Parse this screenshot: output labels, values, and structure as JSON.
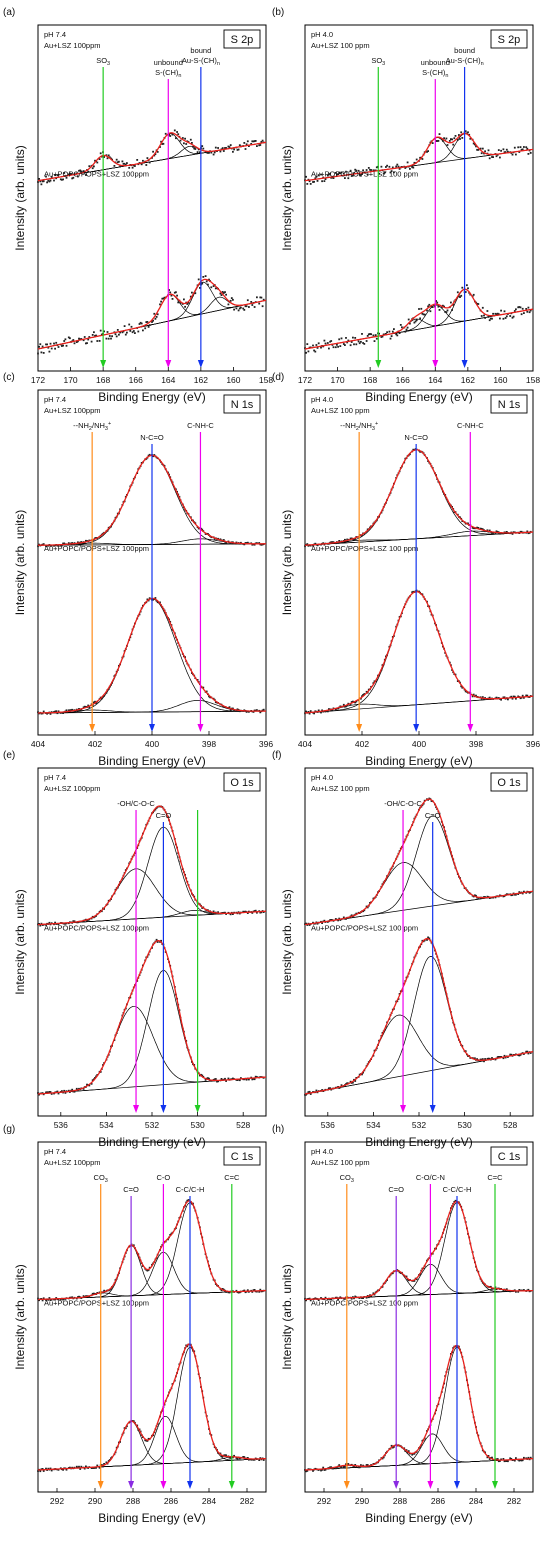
{
  "figure": {
    "panels": [
      {
        "id": "a",
        "tag": "(a)",
        "badge": "S 2p",
        "cond": "pH 7.4",
        "sample_top": "Au+LSZ 100ppm",
        "sample_bottom": "Au+POPC/POPS+LSZ 100ppm"
      },
      {
        "id": "b",
        "tag": "(b)",
        "badge": "S 2p",
        "cond": "pH 4.0",
        "sample_top": "Au+LSZ 100 ppm",
        "sample_bottom": "Au+POPC/POPS+LSZ 100 ppm"
      },
      {
        "id": "c",
        "tag": "(c)",
        "badge": "N 1s",
        "cond": "pH 7.4",
        "sample_top": "Au+LSZ 100ppm",
        "sample_bottom": "Au+POPC/POPS+LSZ 100ppm"
      },
      {
        "id": "d",
        "tag": "(d)",
        "badge": "N 1s",
        "cond": "pH 4.0",
        "sample_top": "Au+LSZ 100 ppm",
        "sample_bottom": "Au+POPC/POPS+LSZ 100 ppm"
      },
      {
        "id": "e",
        "tag": "(e)",
        "badge": "O 1s",
        "cond": "pH 7.4",
        "sample_top": "Au+LSZ 100ppm",
        "sample_bottom": "Au+POPC/POPS+LSZ 100ppm"
      },
      {
        "id": "f",
        "tag": "(f)",
        "badge": "O 1s",
        "cond": "pH 4.0",
        "sample_top": "Au+LSZ 100 ppm",
        "sample_bottom": "Au+POPC/POPS+LSZ 100 ppm"
      },
      {
        "id": "g",
        "tag": "(g)",
        "badge": "C 1s",
        "cond": "pH 7.4",
        "sample_top": "Au+LSZ 100ppm",
        "sample_bottom": "Au+POPC/POPS+LSZ 100ppm"
      },
      {
        "id": "h",
        "tag": "(h)",
        "badge": "C 1s",
        "cond": "pH 4.0",
        "sample_top": "Au+LSZ 100 ppm",
        "sample_bottom": "Au+POPC/POPS+LSZ 100 ppm"
      }
    ]
  },
  "chart_data": [
    {
      "panel": "a",
      "type": "scatter",
      "title": "S 2p",
      "xlabel": "Binding Energy (eV)",
      "ylabel": "Intensity (arb. units)",
      "xlim": [
        172,
        158
      ],
      "xticks": [
        172,
        170,
        168,
        166,
        164,
        162,
        160,
        158
      ],
      "markers": [
        {
          "x": 168.0,
          "label": "SO",
          "sub": "3",
          "label2": "",
          "color": "#22cc22"
        },
        {
          "x": 164.0,
          "label": "unbound",
          "sub": "",
          "label2": "S-(CH)",
          "sub2": "n",
          "color": "#ee00ee"
        },
        {
          "x": 162.0,
          "label": "bound",
          "sub": "",
          "label2": "Au-S-(CH)",
          "sub2": "n",
          "color": "#1133ee"
        }
      ],
      "spectra": [
        {
          "name": "Au+LSZ 100ppm",
          "peaks": [
            {
              "center": 168.0,
              "amp": 0.08,
              "fwhm": 1.2
            },
            {
              "center": 163.9,
              "amp": 0.14,
              "fwhm": 1.4
            },
            {
              "center": 162.7,
              "amp": 0.05,
              "fwhm": 1.2
            }
          ]
        },
        {
          "name": "Au+POPC/POPS+LSZ 100ppm",
          "peaks": [
            {
              "center": 163.9,
              "amp": 0.1,
              "fwhm": 1.4
            },
            {
              "center": 161.9,
              "amp": 0.12,
              "fwhm": 1.4
            },
            {
              "center": 160.9,
              "amp": 0.05,
              "fwhm": 1.2
            }
          ]
        }
      ]
    },
    {
      "panel": "b",
      "type": "scatter",
      "title": "S 2p",
      "xlabel": "Binding Energy (eV)",
      "ylabel": "Intensity (arb. units)",
      "xlim": [
        172,
        158
      ],
      "xticks": [
        172,
        170,
        168,
        166,
        164,
        162,
        160,
        158
      ],
      "markers": [
        {
          "x": 167.5,
          "label": "SO",
          "sub": "3",
          "label2": "",
          "color": "#22cc22"
        },
        {
          "x": 164.0,
          "label": "unbound",
          "sub": "",
          "label2": "S-(CH)",
          "sub2": "n",
          "color": "#ee00ee"
        },
        {
          "x": 162.2,
          "label": "bound",
          "sub": "",
          "label2": "Au-S-(CH)",
          "sub2": "n",
          "color": "#1133ee"
        }
      ],
      "spectra": [
        {
          "name": "Au+LSZ 100 ppm",
          "peaks": [
            {
              "center": 163.9,
              "amp": 0.12,
              "fwhm": 1.4
            },
            {
              "center": 162.2,
              "amp": 0.12,
              "fwhm": 1.4
            }
          ]
        },
        {
          "name": "Au+POPC/POPS+LSZ 100 ppm",
          "peaks": [
            {
              "center": 164.0,
              "amp": 0.12,
              "fwhm": 1.4
            },
            {
              "center": 162.2,
              "amp": 0.18,
              "fwhm": 1.4
            },
            {
              "center": 165.2,
              "amp": 0.06,
              "fwhm": 1.2
            }
          ]
        }
      ]
    },
    {
      "panel": "c",
      "type": "scatter",
      "title": "N 1s",
      "xlabel": "Binding Energy (eV)",
      "ylabel": "Intensity (arb. units)",
      "xlim": [
        404,
        396
      ],
      "xticks": [
        404,
        402,
        400,
        398,
        396
      ],
      "markers": [
        {
          "x": 402.1,
          "label": "--NH",
          "sub": "2",
          "label_mid": "/NH",
          "sub_mid": "3",
          "sup_mid": "+",
          "label2": "",
          "color": "#ff8c1a"
        },
        {
          "x": 400.0,
          "label": "N-C=O",
          "sub": "",
          "label2": "",
          "color": "#1133ee"
        },
        {
          "x": 398.3,
          "label": "C-NH-C",
          "sub": "",
          "label2": "",
          "color": "#ee00ee"
        }
      ],
      "spectra": [
        {
          "name": "Au+LSZ 100ppm",
          "peaks": [
            {
              "center": 400.0,
              "amp": 1.0,
              "fwhm": 1.9
            },
            {
              "center": 398.3,
              "amp": 0.06,
              "fwhm": 1.5
            },
            {
              "center": 402.1,
              "amp": 0.02,
              "fwhm": 1.5
            }
          ]
        },
        {
          "name": "Au+POPC/POPS+LSZ 100ppm",
          "peaks": [
            {
              "center": 400.0,
              "amp": 0.9,
              "fwhm": 2.0
            },
            {
              "center": 398.4,
              "amp": 0.09,
              "fwhm": 1.5
            },
            {
              "center": 402.1,
              "amp": 0.02,
              "fwhm": 1.5
            }
          ]
        }
      ]
    },
    {
      "panel": "d",
      "type": "scatter",
      "title": "N 1s",
      "xlabel": "Binding Energy (eV)",
      "ylabel": "Intensity (arb. units)",
      "xlim": [
        404,
        396
      ],
      "xticks": [
        404,
        402,
        400,
        398,
        396
      ],
      "markers": [
        {
          "x": 402.1,
          "label": "--NH",
          "sub": "2",
          "label_mid": "/NH",
          "sub_mid": "3",
          "sup_mid": "+",
          "label2": "",
          "color": "#ff8c1a"
        },
        {
          "x": 400.1,
          "label": "N-C=O",
          "sub": "",
          "label2": "",
          "color": "#1133ee"
        },
        {
          "x": 398.2,
          "label": "C-NH-C",
          "sub": "",
          "label2": "",
          "color": "#ee00ee"
        }
      ],
      "spectra": [
        {
          "name": "Au+LSZ 100 ppm",
          "peaks": [
            {
              "center": 400.1,
              "amp": 1.0,
              "fwhm": 1.9
            },
            {
              "center": 398.2,
              "amp": 0.05,
              "fwhm": 1.5
            },
            {
              "center": 402.1,
              "amp": 0.02,
              "fwhm": 1.5
            }
          ]
        },
        {
          "name": "Au+POPC/POPS+LSZ 100 ppm",
          "peaks": [
            {
              "center": 400.1,
              "amp": 0.72,
              "fwhm": 1.9
            },
            {
              "center": 402.1,
              "amp": 0.03,
              "fwhm": 1.5
            }
          ]
        }
      ]
    },
    {
      "panel": "e",
      "type": "scatter",
      "title": "O 1s",
      "xlabel": "Binding Energy (eV)",
      "ylabel": "Intensity (arb. units)",
      "xlim": [
        537,
        527
      ],
      "xticks": [
        536,
        534,
        532,
        530,
        528
      ],
      "markers": [
        {
          "x": 532.7,
          "label": "-OH/C-O-C",
          "sub": "",
          "label2": "",
          "color": "#ee00ee"
        },
        {
          "x": 531.5,
          "label": "C=O",
          "sub": "",
          "label2": "",
          "color": "#1133ee"
        },
        {
          "x": 530.0,
          "label": "",
          "sub": "",
          "label2": "",
          "color": "#22cc22"
        }
      ],
      "spectra": [
        {
          "name": "Au+LSZ 100ppm",
          "peaks": [
            {
              "center": 531.5,
              "amp": 0.9,
              "fwhm": 1.6
            },
            {
              "center": 532.7,
              "amp": 0.5,
              "fwhm": 2.0
            },
            {
              "center": 530.2,
              "amp": 0.05,
              "fwhm": 1.3
            }
          ]
        },
        {
          "name": "Au+POPC/POPS+LSZ 100ppm",
          "peaks": [
            {
              "center": 531.5,
              "amp": 0.78,
              "fwhm": 1.6
            },
            {
              "center": 532.8,
              "amp": 0.55,
              "fwhm": 2.0
            }
          ]
        }
      ]
    },
    {
      "panel": "f",
      "type": "scatter",
      "title": "O 1s",
      "xlabel": "Binding Energy (eV)",
      "ylabel": "Intensity (arb. units)",
      "xlim": [
        537,
        527
      ],
      "xticks": [
        536,
        534,
        532,
        530,
        528
      ],
      "markers": [
        {
          "x": 532.7,
          "label": "-OH/C-O-C",
          "sub": "",
          "label2": "",
          "color": "#ee00ee"
        },
        {
          "x": 531.4,
          "label": "C=O",
          "sub": "",
          "label2": "",
          "color": "#1133ee"
        }
      ],
      "spectra": [
        {
          "name": "Au+LSZ 100 ppm",
          "peaks": [
            {
              "center": 531.4,
              "amp": 0.85,
              "fwhm": 1.7
            },
            {
              "center": 532.7,
              "amp": 0.45,
              "fwhm": 2.0
            }
          ]
        },
        {
          "name": "Au+POPC/POPS+LSZ 100 ppm",
          "peaks": [
            {
              "center": 531.5,
              "amp": 0.65,
              "fwhm": 1.7
            },
            {
              "center": 532.9,
              "amp": 0.35,
              "fwhm": 2.0
            }
          ]
        }
      ]
    },
    {
      "panel": "g",
      "type": "scatter",
      "title": "C 1s",
      "xlabel": "Binding Energy (eV)",
      "ylabel": "Intensity (arb. units)",
      "xlim": [
        293,
        281
      ],
      "xticks": [
        292,
        290,
        288,
        286,
        284,
        282
      ],
      "markers": [
        {
          "x": 289.7,
          "label": "CO",
          "sub": "3",
          "label2": "",
          "color": "#ff8c1a"
        },
        {
          "x": 288.1,
          "label": "C=O",
          "sub": "",
          "label2": "",
          "color": "#8a2be2"
        },
        {
          "x": 286.4,
          "label": "C-O",
          "sub": "",
          "label2": "",
          "color": "#ee00ee"
        },
        {
          "x": 285.0,
          "label": "C-C/C-H",
          "sub": "",
          "label2": "",
          "color": "#1133ee"
        },
        {
          "x": 282.8,
          "label": "C=C",
          "sub": "",
          "label2": "",
          "color": "#22cc22"
        }
      ],
      "spectra": [
        {
          "name": "Au+LSZ 100ppm",
          "peaks": [
            {
              "center": 285.0,
              "amp": 0.9,
              "fwhm": 1.5
            },
            {
              "center": 286.4,
              "amp": 0.42,
              "fwhm": 1.3
            },
            {
              "center": 288.1,
              "amp": 0.5,
              "fwhm": 1.2
            },
            {
              "center": 289.6,
              "amp": 0.04,
              "fwhm": 1.2
            }
          ]
        },
        {
          "name": "Au+POPC/POPS+LSZ 100ppm",
          "peaks": [
            {
              "center": 285.0,
              "amp": 0.68,
              "fwhm": 1.5
            },
            {
              "center": 286.3,
              "amp": 0.28,
              "fwhm": 1.3
            },
            {
              "center": 288.1,
              "amp": 0.26,
              "fwhm": 1.3
            },
            {
              "center": 282.8,
              "amp": 0.02,
              "fwhm": 1.2
            }
          ]
        }
      ]
    },
    {
      "panel": "h",
      "type": "scatter",
      "title": "C 1s",
      "xlabel": "Binding Energy (eV)",
      "ylabel": "Intensity (arb. units)",
      "xlim": [
        293,
        281
      ],
      "xticks": [
        292,
        290,
        288,
        286,
        284,
        282
      ],
      "markers": [
        {
          "x": 290.8,
          "label": "CO",
          "sub": "3",
          "label2": "",
          "color": "#ff8c1a"
        },
        {
          "x": 288.2,
          "label": "C=O",
          "sub": "",
          "label2": "",
          "color": "#8a2be2"
        },
        {
          "x": 286.4,
          "label": "C-O/C-N",
          "sub": "",
          "label2": "",
          "color": "#ee00ee"
        },
        {
          "x": 285.0,
          "label": "C-C/C-H",
          "sub": "",
          "label2": "",
          "color": "#1133ee"
        },
        {
          "x": 283.0,
          "label": "C=C",
          "sub": "",
          "label2": "",
          "color": "#22cc22"
        }
      ],
      "spectra": [
        {
          "name": "Au+LSZ 100 ppm",
          "peaks": [
            {
              "center": 285.0,
              "amp": 0.9,
              "fwhm": 1.5
            },
            {
              "center": 286.4,
              "amp": 0.3,
              "fwhm": 1.3
            },
            {
              "center": 288.2,
              "amp": 0.25,
              "fwhm": 1.3
            },
            {
              "center": 283.0,
              "amp": 0.03,
              "fwhm": 1.2
            }
          ]
        },
        {
          "name": "Au+POPC/POPS+LSZ 100 ppm",
          "peaks": [
            {
              "center": 285.0,
              "amp": 0.85,
              "fwhm": 1.5
            },
            {
              "center": 286.3,
              "amp": 0.22,
              "fwhm": 1.3
            },
            {
              "center": 288.2,
              "amp": 0.15,
              "fwhm": 1.3
            },
            {
              "center": 290.8,
              "amp": 0.02,
              "fwhm": 1.2
            }
          ]
        }
      ]
    }
  ]
}
